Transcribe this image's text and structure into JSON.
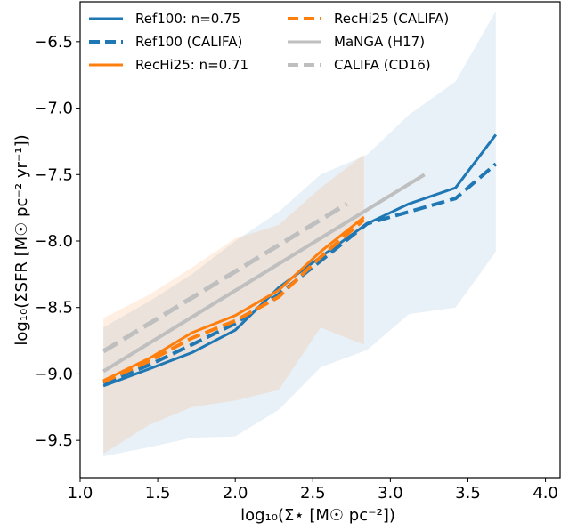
{
  "chart_data": {
    "type": "line",
    "xlabel": "log₁₀(Σ⋆ [M☉ pc⁻²])",
    "ylabel": "log₁₀(ΣSFR [M☉ pc⁻² yr⁻¹])",
    "xlim": [
      1.0,
      4.1
    ],
    "ylim": [
      -9.78,
      -6.2
    ],
    "xticks": [
      1.0,
      1.5,
      2.0,
      2.5,
      3.0,
      3.5,
      4.0
    ],
    "xtick_labels": [
      "1.0",
      "1.5",
      "2.0",
      "2.5",
      "3.0",
      "3.5",
      "4.0"
    ],
    "yticks": [
      -9.5,
      -9.0,
      -8.5,
      -8.0,
      -7.5,
      -7.0,
      -6.5
    ],
    "ytick_labels": [
      "−9.5",
      "−9.0",
      "−8.5",
      "−8.0",
      "−7.5",
      "−7.0",
      "−6.5"
    ],
    "grid": false,
    "legend_position": "top-left",
    "bands": [
      {
        "color": "#1f77b4",
        "opacity": 0.1,
        "x": [
          1.15,
          1.45,
          1.72,
          2.0,
          2.28,
          2.55,
          2.85,
          3.12,
          3.42,
          3.68
        ],
        "lower": [
          -9.62,
          -9.55,
          -9.48,
          -9.47,
          -9.27,
          -8.95,
          -8.82,
          -8.55,
          -8.5,
          -8.08
        ],
        "upper": [
          -8.65,
          -8.45,
          -8.25,
          -8.0,
          -7.78,
          -7.5,
          -7.35,
          -7.05,
          -6.8,
          -6.27
        ]
      },
      {
        "color": "#ff7f0e",
        "opacity": 0.12,
        "x": [
          1.15,
          1.45,
          1.72,
          2.0,
          2.28,
          2.55,
          2.83
        ],
        "lower": [
          -9.6,
          -9.38,
          -9.25,
          -9.2,
          -9.12,
          -8.65,
          -8.78
        ],
        "upper": [
          -8.58,
          -8.4,
          -8.2,
          -7.98,
          -7.88,
          -7.6,
          -7.35
        ]
      }
    ],
    "series": [
      {
        "name": "CALIFA (CD16)",
        "color": "#bfbfbf",
        "dash": "dashed",
        "width": 5,
        "x": [
          1.15,
          2.72
        ],
        "y": [
          -8.83,
          -7.72
        ]
      },
      {
        "name": "MaNGA (H17)",
        "color": "#bfbfbf",
        "dash": "solid",
        "width": 4,
        "x": [
          1.15,
          3.22
        ],
        "y": [
          -8.98,
          -7.5
        ]
      },
      {
        "name": "Ref100: n=0.75",
        "color": "#1f77b4",
        "dash": "solid",
        "width": 3,
        "x": [
          1.15,
          1.45,
          1.72,
          2.0,
          2.28,
          2.55,
          2.85,
          3.12,
          3.42,
          3.68
        ],
        "y": [
          -9.09,
          -8.96,
          -8.84,
          -8.67,
          -8.35,
          -8.12,
          -7.87,
          -7.72,
          -7.6,
          -7.2
        ]
      },
      {
        "name": "Ref100 (CALIFA)",
        "color": "#1f77b4",
        "dash": "dashed",
        "width": 4,
        "x": [
          1.15,
          1.45,
          1.72,
          2.0,
          2.28,
          2.55,
          2.85,
          3.12,
          3.42,
          3.68
        ],
        "y": [
          -9.07,
          -8.93,
          -8.78,
          -8.62,
          -8.4,
          -8.15,
          -7.87,
          -7.78,
          -7.68,
          -7.42
        ]
      },
      {
        "name": "RecHi25: n=0.71",
        "color": "#ff7f0e",
        "dash": "solid",
        "width": 3,
        "x": [
          1.15,
          1.45,
          1.72,
          2.0,
          2.28,
          2.55,
          2.83
        ],
        "y": [
          -9.05,
          -8.88,
          -8.69,
          -8.56,
          -8.37,
          -8.08,
          -7.82
        ]
      },
      {
        "name": "RecHi25 (CALIFA)",
        "color": "#ff7f0e",
        "dash": "dashed",
        "width": 4,
        "x": [
          1.15,
          1.45,
          1.72,
          2.0,
          2.28,
          2.55,
          2.83
        ],
        "y": [
          -9.06,
          -8.9,
          -8.73,
          -8.6,
          -8.42,
          -8.12,
          -7.84
        ]
      }
    ],
    "legend": [
      {
        "label": "Ref100: n=0.75",
        "color": "#1f77b4",
        "dash": "solid"
      },
      {
        "label": "RecHi25 (CALIFA)",
        "color": "#ff7f0e",
        "dash": "dashed"
      },
      {
        "label": "Ref100 (CALIFA)",
        "color": "#1f77b4",
        "dash": "dashed"
      },
      {
        "label": "MaNGA (H17)",
        "color": "#bfbfbf",
        "dash": "solid"
      },
      {
        "label": "RecHi25: n=0.71",
        "color": "#ff7f0e",
        "dash": "solid"
      },
      {
        "label": "CALIFA (CD16)",
        "color": "#bfbfbf",
        "dash": "dashed"
      }
    ]
  }
}
